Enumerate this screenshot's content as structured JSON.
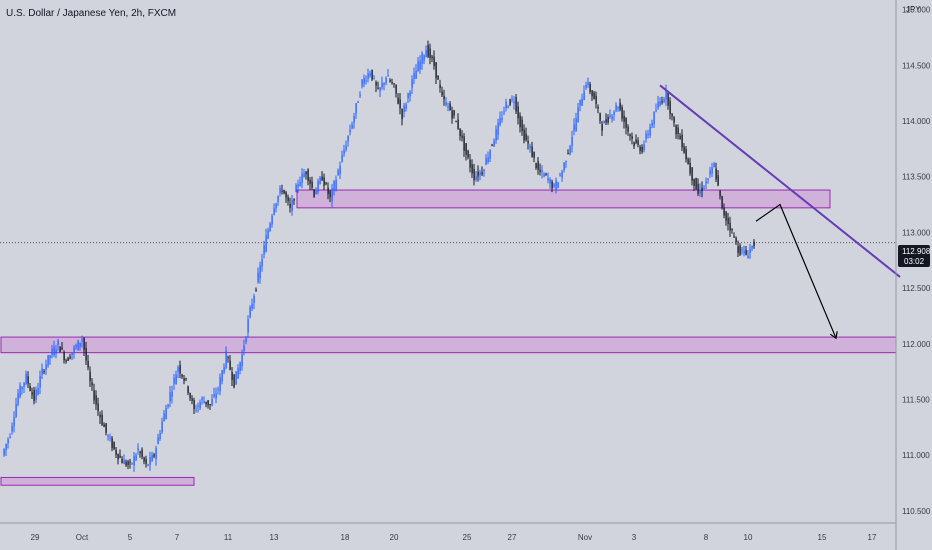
{
  "chart_data": {
    "type": "candlestick",
    "title": "U.S. Dollar / Japanese Yen, 2h, FXCM",
    "currency_label": "JPY",
    "ylim": [
      110.4,
      115.05
    ],
    "y_ticks": [
      "115.000",
      "114.500",
      "114.000",
      "113.500",
      "113.000",
      "112.500",
      "112.000",
      "111.500",
      "111.000",
      "110.500"
    ],
    "x_ticks": [
      "29",
      "Oct",
      "5",
      "7",
      "11",
      "13",
      "18",
      "20",
      "25",
      "27",
      "Nov",
      "3",
      "8",
      "10",
      "15",
      "17"
    ],
    "last_price": "112.908",
    "countdown": "03:02",
    "colors": {
      "bull": "#2962ff",
      "bear": "#131722",
      "zone_fill": "#ce93d8",
      "zone_stroke": "#9c27b0",
      "trendline": "#673ab7",
      "background": "#d1d4dc",
      "price_tag_bg": "#131722"
    },
    "price_path": [
      111.0,
      111.2,
      111.55,
      111.7,
      111.5,
      111.75,
      111.9,
      112.0,
      111.85,
      111.95,
      112.05,
      111.65,
      111.4,
      111.2,
      111.05,
      110.95,
      110.9,
      111.05,
      110.9,
      111.0,
      111.3,
      111.55,
      111.8,
      111.65,
      111.4,
      111.5,
      111.45,
      111.6,
      111.9,
      111.65,
      111.9,
      112.3,
      112.6,
      112.95,
      113.25,
      113.4,
      113.2,
      113.45,
      113.55,
      113.35,
      113.5,
      113.3,
      113.55,
      113.8,
      114.05,
      114.35,
      114.45,
      114.25,
      114.4,
      114.3,
      114.05,
      114.3,
      114.5,
      114.65,
      114.5,
      114.2,
      114.1,
      113.95,
      113.7,
      113.5,
      113.55,
      113.75,
      113.95,
      114.15,
      114.2,
      113.9,
      113.75,
      113.55,
      113.5,
      113.4,
      113.55,
      113.8,
      114.1,
      114.35,
      114.2,
      113.95,
      114.05,
      114.15,
      113.95,
      113.8,
      113.75,
      113.95,
      114.15,
      114.25,
      113.95,
      113.8,
      113.55,
      113.35,
      113.45,
      113.6,
      113.2,
      113.05,
      112.85,
      112.8,
      112.9
    ],
    "zones": [
      {
        "start_index": 37,
        "end": "right-edge-of-plot",
        "low": 113.22,
        "high": 113.38
      },
      {
        "start_index": 0,
        "end": "full-width",
        "low": 111.92,
        "high": 112.06
      },
      {
        "start_index": 0,
        "end_index": 30,
        "low": 110.73,
        "high": 110.8
      }
    ],
    "trendline": {
      "from_index": 82,
      "from_price": 114.32,
      "to_index": 112,
      "to_price": 112.6
    },
    "projection": {
      "points": [
        {
          "index": 94,
          "price": 113.1
        },
        {
          "index": 97,
          "price": 113.25
        },
        {
          "index": 104,
          "price": 112.05
        }
      ]
    }
  }
}
